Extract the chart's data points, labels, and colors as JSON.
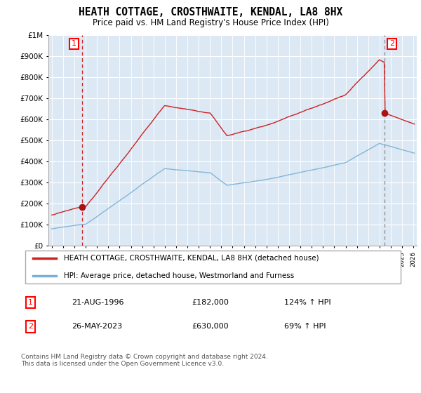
{
  "title": "HEATH COTTAGE, CROSTHWAITE, KENDAL, LA8 8HX",
  "subtitle": "Price paid vs. HM Land Registry's House Price Index (HPI)",
  "legend_line1": "HEATH COTTAGE, CROSTHWAITE, KENDAL, LA8 8HX (detached house)",
  "legend_line2": "HPI: Average price, detached house, Westmorland and Furness",
  "transaction1_date": "21-AUG-1996",
  "transaction1_price": 182000,
  "transaction1_hpi": "124% ↑ HPI",
  "transaction2_date": "26-MAY-2023",
  "transaction2_price": 630000,
  "transaction2_hpi": "69% ↑ HPI",
  "hpi_color": "#7ab0d4",
  "property_color": "#cc2222",
  "dot_color": "#aa1111",
  "chart_bg": "#dce9f5",
  "grid_color": "#ffffff",
  "ylim": [
    0,
    1000000
  ],
  "xlim_start": 1993.7,
  "xlim_end": 2026.3,
  "footnote": "Contains HM Land Registry data © Crown copyright and database right 2024.\nThis data is licensed under the Open Government Licence v3.0."
}
